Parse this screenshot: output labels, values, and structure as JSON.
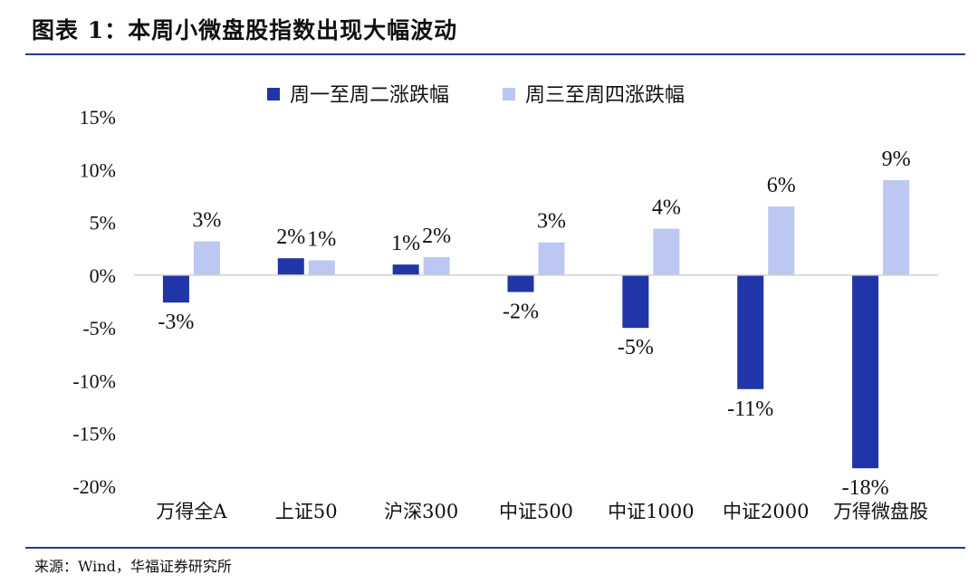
{
  "header": {
    "title": "图表 1：本周小微盘股指数出现大幅波动"
  },
  "footer": {
    "source": "来源：Wind，华福证券研究所"
  },
  "colors": {
    "series1": "#1f35a8",
    "series2": "#bdc8f2",
    "rule": "#1f3d8f"
  },
  "chart_data": {
    "type": "bar",
    "categories": [
      "万得全A",
      "上证50",
      "沪深300",
      "中证500",
      "中证1000",
      "中证2000",
      "万得微盘股"
    ],
    "series": [
      {
        "name": "周一至周二涨跌幅",
        "values": [
          -2.6,
          1.6,
          1.0,
          -1.6,
          -5.0,
          -10.8,
          -18.3
        ],
        "labels": [
          "-3%",
          "2%",
          "1%",
          "-2%",
          "-5%",
          "-11%",
          "-18%"
        ]
      },
      {
        "name": "周三至周四涨跌幅",
        "values": [
          3.2,
          1.4,
          1.7,
          3.1,
          4.4,
          6.5,
          9.0
        ],
        "labels": [
          "3%",
          "1%",
          "2%",
          "3%",
          "4%",
          "6%",
          "9%"
        ]
      }
    ],
    "yticks": [
      "15%",
      "10%",
      "5%",
      "0%",
      "-5%",
      "-10%",
      "-15%",
      "-20%"
    ],
    "ytick_values": [
      15,
      10,
      5,
      0,
      -5,
      -10,
      -15,
      -20
    ],
    "ylim": [
      -20,
      15
    ],
    "grid": false,
    "legend_position": "top-center"
  }
}
